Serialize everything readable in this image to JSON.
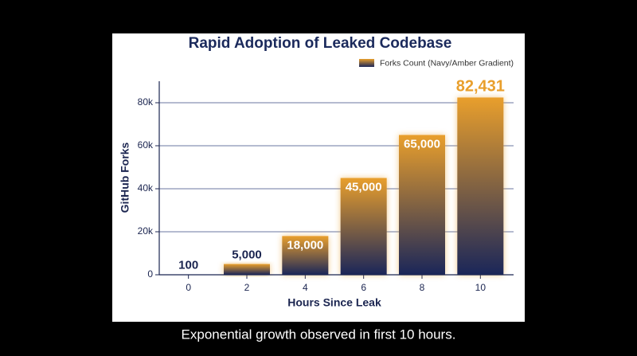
{
  "chart_data": {
    "type": "bar",
    "title": "Rapid Adoption of Leaked Codebase",
    "x_label": "Hours Since Leak",
    "y_label": "GitHub Forks",
    "x": [
      0,
      2,
      4,
      6,
      8,
      10
    ],
    "xlim": [
      -1,
      11
    ],
    "xticks": [
      0,
      2,
      4,
      6,
      8,
      10
    ],
    "ylim": [
      0,
      90000
    ],
    "yticks": [
      0,
      {
        "value": 20000,
        "label": "20k"
      },
      {
        "value": 40000,
        "label": "40k"
      },
      {
        "value": 60000,
        "label": "60k"
      },
      {
        "value": 80000,
        "label": "80k"
      }
    ],
    "grid": true,
    "legend": "top-right",
    "series": [
      {
        "name": "Forks Count (Navy/Amber Gradient)",
        "color": [
          "#e99f2c",
          "#1a2659"
        ],
        "values": [
          100,
          5000,
          18000,
          45000,
          65000,
          82431
        ],
        "value_labels": [
          "100",
          "5,000",
          "18,000",
          "45,000",
          "65,000",
          "82,431"
        ]
      }
    ],
    "caption": "Exponential growth observed in first 10 hours."
  }
}
